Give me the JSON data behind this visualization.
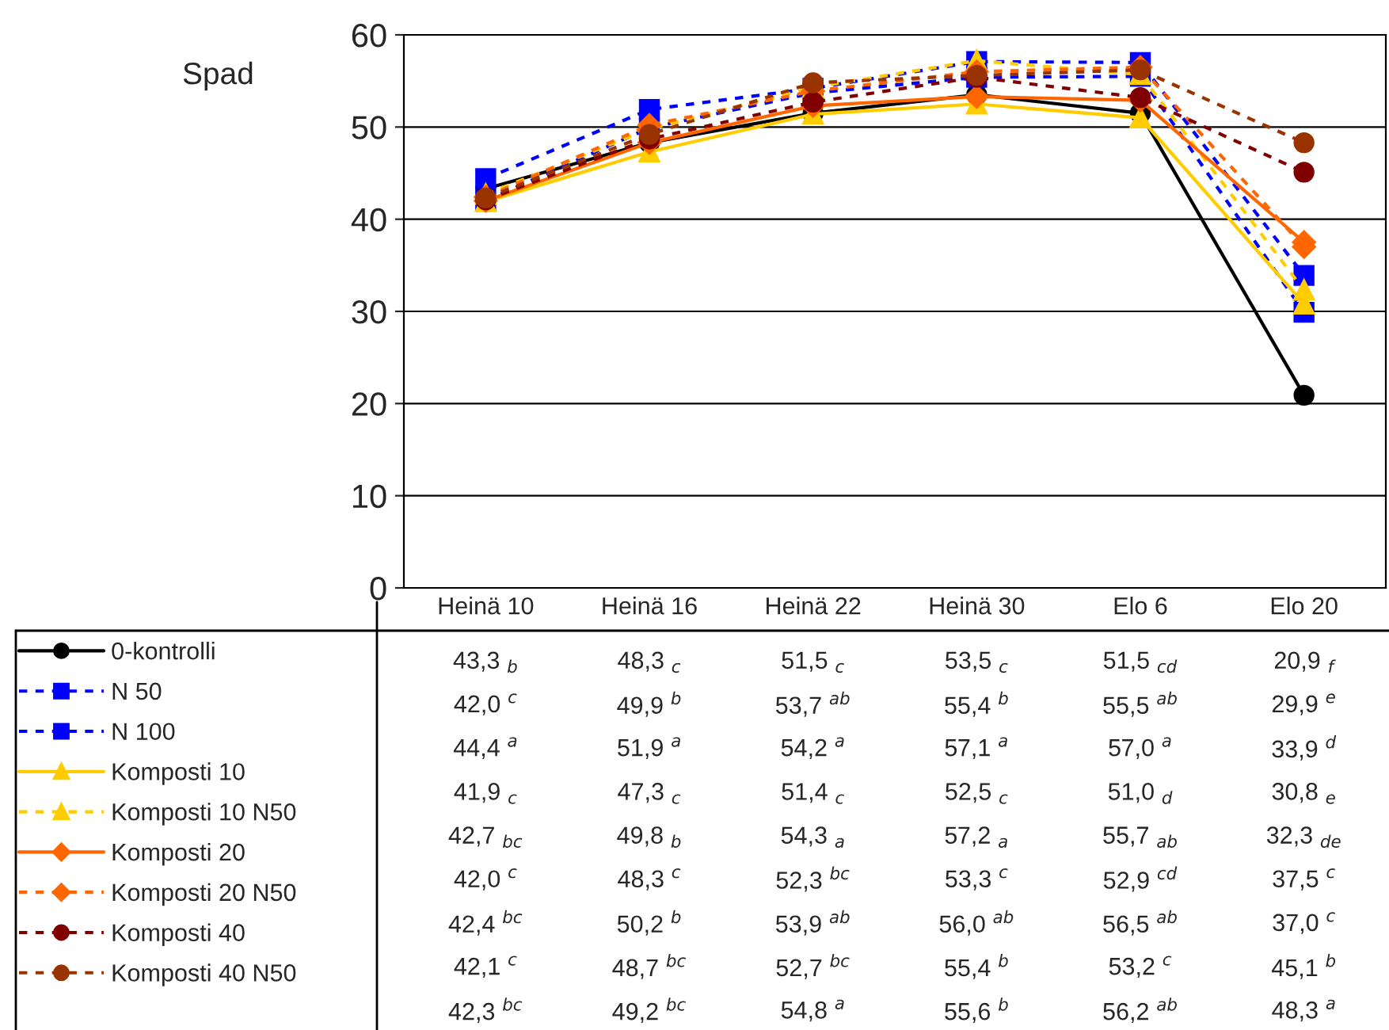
{
  "chart_data": {
    "type": "line",
    "ylabel": "Spad",
    "categories": [
      "Heinä 10",
      "Heinä 16",
      "Heinä 22",
      "Heinä 30",
      "Elo 6",
      "Elo 20"
    ],
    "ylim": [
      0,
      60
    ],
    "yticks": [
      0,
      10,
      20,
      30,
      40,
      50,
      60
    ],
    "grid": "y",
    "legend": "bottom left",
    "series": [
      {
        "name": "0-kontrolli",
        "color": "#000000",
        "line_style": "solid",
        "marker": "circle",
        "values": [
          43.3,
          48.3,
          51.5,
          53.5,
          51.5,
          20.9
        ],
        "value_labels": [
          "43,3 $_{b}$",
          "48,3 $_{c}$",
          "51,5 $_{c}$",
          "53,5 $_{c}$",
          "51,5 $_{cd}$",
          "20,9 $_{f}$"
        ]
      },
      {
        "name": "N 50",
        "color": "#0000ff",
        "line_style": "dashed",
        "marker": "square",
        "values": [
          42.0,
          49.9,
          53.7,
          55.4,
          55.5,
          29.9
        ],
        "value_labels": [
          "42,0 $^{c}$",
          "49,9 $^{b}$",
          "53,7 $^{ab}$",
          "55,4 $^{b}$",
          "55,5 $^{ab}$",
          "29,9 $^{e}$"
        ]
      },
      {
        "name": "N 100",
        "color": "#0000ff",
        "line_style": "dashed",
        "marker": "square",
        "values": [
          44.4,
          51.9,
          54.2,
          57.1,
          57.0,
          33.9
        ],
        "value_labels": [
          "44,4 $^{a}$",
          "51,9 $^{a}$",
          "54,2 $^{a}$",
          "57,1 $^{a}$",
          "57,0 $^{a}$",
          "33,9 $^{d}$"
        ]
      },
      {
        "name": "Komposti 10",
        "color": "#ffcc00",
        "line_style": "solid",
        "marker": "triangle",
        "values": [
          41.9,
          47.3,
          51.4,
          52.5,
          51.0,
          30.8
        ],
        "value_labels": [
          "41,9 $_{c}$",
          "47,3 $_{c}$",
          "51,4 $_{c}$",
          "52,5 $_{c}$",
          "51,0 $_{d}$",
          "30,8 $_{e}$"
        ]
      },
      {
        "name": "Komposti 10 N50",
        "color": "#ffcc00",
        "line_style": "dashed",
        "marker": "triangle",
        "values": [
          42.7,
          49.8,
          54.3,
          57.2,
          55.7,
          32.3
        ],
        "value_labels": [
          "42,7 $_{bc}$",
          "49,8 $_{b}$",
          "54,3 $_{a}$",
          "57,2 $_{a}$",
          "55,7 $_{ab}$",
          "32,3 $_{de}$"
        ]
      },
      {
        "name": "Komposti 20",
        "color": "#ff6600",
        "line_style": "solid",
        "marker": "diamond",
        "values": [
          42.0,
          48.3,
          52.3,
          53.3,
          52.9,
          37.5
        ],
        "value_labels": [
          "42,0 $^{c}$",
          "48,3 $^{c}$",
          "52,3 $^{bc}$",
          "53,3 $^{c}$",
          "52,9 $^{cd}$",
          "37,5 $^{c}$"
        ]
      },
      {
        "name": "Komposti 20 N50",
        "color": "#ff6600",
        "line_style": "dashed",
        "marker": "diamond",
        "values": [
          42.4,
          50.2,
          53.9,
          56.0,
          56.5,
          37.0
        ],
        "value_labels": [
          "42,4 $^{bc}$",
          "50,2 $^{b}$",
          "53,9 $^{ab}$",
          "56,0 $^{ab}$",
          "56,5 $^{ab}$",
          "37,0 $^{c}$"
        ]
      },
      {
        "name": "Komposti 40",
        "color": "#800000",
        "line_style": "dashed",
        "marker": "circle",
        "values": [
          42.1,
          48.7,
          52.7,
          55.4,
          53.2,
          45.1
        ],
        "value_labels": [
          "42,1 $^{c}$",
          "48,7 $^{bc}$",
          "52,7 $^{bc}$",
          "55,4 $^{b}$",
          "53,2 $^{c}$",
          "45,1 $^{b}$"
        ]
      },
      {
        "name": "Komposti 40 N50",
        "color": "#993300",
        "line_style": "dashed",
        "marker": "circle",
        "values": [
          42.3,
          49.2,
          54.8,
          55.6,
          56.2,
          48.3
        ],
        "value_labels": [
          "42,3 $^{bc}$",
          "49,2 $^{bc}$",
          "54,8 $^{a}$",
          "55,6 $^{b}$",
          "56,2 $^{ab}$",
          "48,3 $^{a}$"
        ]
      }
    ]
  }
}
